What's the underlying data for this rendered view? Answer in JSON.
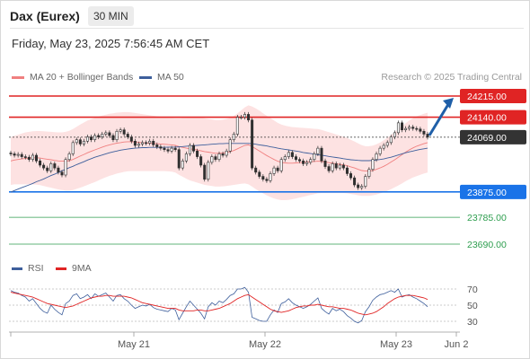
{
  "header": {
    "title": "Dax (Eurex)",
    "timeframe": "30 MIN",
    "datetime": "Friday, May 23, 2025 7:56:45 AM CET"
  },
  "legend": {
    "items": [
      {
        "label": "MA 20 + Bollinger Bands",
        "color": "#f08080"
      },
      {
        "label": "MA 50",
        "color": "#3e5f9c"
      }
    ],
    "credit": "Research © 2025 Trading Central"
  },
  "price_levels": [
    {
      "label": "24215.00",
      "value": 24215,
      "color": "#e02424",
      "kind": "resistance"
    },
    {
      "label": "24140.00",
      "value": 24140,
      "color": "#e02424",
      "kind": "resistance"
    },
    {
      "label": "24069.00",
      "value": 24069,
      "color": "#333333",
      "kind": "last"
    },
    {
      "label": "23875.00",
      "value": 23875,
      "color": "#1a73e8",
      "kind": "pivot"
    },
    {
      "label": "23785.00",
      "value": 23785,
      "color": "#2e9e4f",
      "kind": "support"
    },
    {
      "label": "23690.00",
      "value": 23690,
      "color": "#2e9e4f",
      "kind": "support"
    }
  ],
  "rsi_legend": [
    {
      "label": "RSI",
      "color": "#3e5f9c"
    },
    {
      "label": "9MA",
      "color": "#e02424"
    }
  ],
  "rsi_levels": [
    "70",
    "50",
    "30"
  ],
  "x_axis": {
    "labels": [
      "May 21",
      "May 22",
      "May 23",
      "Jun 2"
    ]
  },
  "chart_data": [
    {
      "type": "candlestick",
      "title": "",
      "ylim": [
        23650,
        24260
      ],
      "x_labels": [
        "May 21",
        "May 22",
        "May 23",
        "Jun 2"
      ],
      "close": [
        24010,
        24005,
        24008,
        24000,
        23998,
        23990,
        24005,
        23985,
        23970,
        23960,
        23950,
        23975,
        23960,
        23945,
        23935,
        23990,
        24010,
        24050,
        24060,
        24045,
        24055,
        24070,
        24060,
        24075,
        24070,
        24080,
        24085,
        24075,
        24060,
        24090,
        24095,
        24080,
        24070,
        24055,
        24040,
        24045,
        24050,
        24048,
        24055,
        24042,
        24035,
        24030,
        24025,
        24020,
        24030,
        24025,
        23960,
        23985,
        24010,
        24040,
        24020,
        24000,
        23970,
        23920,
        23980,
        24000,
        23990,
        24010,
        24005,
        24020,
        24060,
        24080,
        24140,
        24140,
        24150,
        24130,
        23960,
        23945,
        23930,
        23920,
        23915,
        23940,
        23960,
        23950,
        23990,
        24000,
        24015,
        24000,
        23990,
        23985,
        23975,
        23980,
        23990,
        24010,
        24030,
        23985,
        23965,
        23950,
        23975,
        23960,
        23970,
        23960,
        23940,
        23925,
        23900,
        23890,
        23895,
        23930,
        23955,
        23990,
        24010,
        24030,
        24040,
        24050,
        24070,
        24085,
        24120,
        24095,
        24100,
        24105,
        24100,
        24098,
        24090,
        24080,
        24069
      ],
      "ma50": [
        23875,
        23880,
        23885,
        23890,
        23895,
        23900,
        23905,
        23911,
        23916,
        23921,
        23927,
        23933,
        23938,
        23944,
        23950,
        23955,
        23961,
        23966,
        23972,
        23977,
        23982,
        23988,
        23993,
        23998,
        24002,
        24006,
        24010,
        24014,
        24017,
        24020,
        24023,
        24025,
        24027,
        24029,
        24030,
        24031,
        24032,
        24032,
        24033,
        24033,
        24033,
        24033,
        24033,
        24034,
        24034,
        24034,
        24035,
        24036,
        24037,
        24038,
        24039,
        24040,
        24041,
        24042,
        24043,
        24044,
        24045,
        24046,
        24046,
        24047,
        24047,
        24047,
        24047,
        24047,
        24047,
        24047,
        24046,
        24044,
        24042,
        24040,
        24038,
        24035,
        24033,
        24030,
        24028,
        24026,
        24024,
        24022,
        24020,
        24018,
        24015,
        24013,
        24011,
        24009,
        24007,
        24005,
        24003,
        24001,
        23999,
        23997,
        23995,
        23993,
        23991,
        23989,
        23988,
        23987,
        23986,
        23986,
        23986,
        23987,
        23988,
        23990,
        23992,
        23995,
        23998,
        24002,
        24006,
        24010,
        24014,
        24017,
        24020,
        24023,
        24026,
        24028,
        24030
      ],
      "ma20": [
        23985,
        23988,
        23990,
        23992,
        23994,
        23995,
        23996,
        23996,
        23995,
        23993,
        23991,
        23989,
        23987,
        23985,
        23984,
        23984,
        23986,
        23990,
        23996,
        24002,
        24008,
        24014,
        24019,
        24024,
        24029,
        24034,
        24038,
        24042,
        24045,
        24048,
        24050,
        24052,
        24053,
        24053,
        24052,
        24051,
        24050,
        24049,
        24048,
        24047,
        24046,
        24045,
        24044,
        24043,
        24042,
        24040,
        24036,
        24033,
        24030,
        24028,
        24026,
        24024,
        24021,
        24018,
        24016,
        24014,
        24012,
        24012,
        24013,
        24015,
        24018,
        24022,
        24028,
        24034,
        24040,
        24042,
        24036,
        24028,
        24020,
        24012,
        24004,
        23997,
        23990,
        23984,
        23980,
        23978,
        23977,
        23977,
        23978,
        23979,
        23980,
        23981,
        23982,
        23983,
        23984,
        23983,
        23981,
        23979,
        23977,
        23975,
        23973,
        23971,
        23968,
        23964,
        23960,
        23955,
        23951,
        23949,
        23949,
        23951,
        23955,
        23960,
        23966,
        23973,
        23981,
        23989,
        23998,
        24007,
        24016,
        24024,
        24031,
        24037,
        24042,
        24046,
        24050
      ],
      "bb_width": [
        85,
        86,
        88,
        90,
        92,
        93,
        94,
        95,
        96,
        97,
        98,
        99,
        100,
        101,
        102,
        104,
        106,
        108,
        110,
        112,
        113,
        114,
        114,
        114,
        113,
        112,
        111,
        110,
        109,
        108,
        107,
        106,
        105,
        104,
        103,
        102,
        101,
        100,
        99,
        98,
        97,
        96,
        95,
        95,
        95,
        96,
        100,
        104,
        108,
        112,
        114,
        116,
        117,
        118,
        118,
        118,
        118,
        118,
        118,
        119,
        120,
        122,
        126,
        130,
        135,
        140,
        142,
        143,
        143,
        142,
        141,
        140,
        138,
        136,
        134,
        132,
        130,
        128,
        126,
        124,
        122,
        120,
        118,
        116,
        114,
        112,
        110,
        108,
        106,
        104,
        102,
        100,
        98,
        96,
        94,
        92,
        90,
        88,
        88,
        88,
        89,
        90,
        92,
        94,
        96,
        98,
        100,
        102,
        103,
        104,
        105,
        106,
        106,
        106,
        106
      ],
      "levels": [
        24215,
        24140,
        24069,
        23875,
        23785,
        23690
      ],
      "forecast_target": 24215
    },
    {
      "type": "line",
      "title": "",
      "ylim": [
        20,
        80
      ],
      "levels": [
        70,
        50,
        30
      ],
      "series": [
        {
          "name": "RSI",
          "values": [
            68,
            66,
            65,
            62,
            60,
            55,
            58,
            52,
            46,
            42,
            40,
            50,
            45,
            41,
            38,
            52,
            55,
            62,
            64,
            58,
            60,
            63,
            58,
            64,
            61,
            63,
            65,
            60,
            55,
            62,
            63,
            58,
            55,
            50,
            46,
            48,
            50,
            49,
            51,
            47,
            45,
            44,
            43,
            42,
            46,
            44,
            32,
            40,
            48,
            55,
            50,
            45,
            40,
            33,
            48,
            53,
            50,
            55,
            53,
            57,
            62,
            64,
            70,
            70,
            72,
            66,
            35,
            33,
            31,
            30,
            30,
            38,
            44,
            41,
            52,
            54,
            58,
            53,
            50,
            48,
            46,
            48,
            51,
            55,
            59,
            46,
            42,
            39,
            46,
            43,
            45,
            42,
            37,
            34,
            30,
            28,
            31,
            42,
            48,
            56,
            60,
            63,
            64,
            66,
            68,
            66,
            70,
            60,
            62,
            63,
            60,
            58,
            55,
            52,
            48
          ]
        },
        {
          "name": "9MA",
          "values": [
            66,
            65,
            64,
            63,
            62,
            61,
            60,
            58,
            56,
            54,
            52,
            51,
            50,
            49,
            48,
            47,
            48,
            49,
            51,
            53,
            55,
            57,
            59,
            60,
            61,
            61,
            62,
            62,
            61,
            61,
            61,
            61,
            60,
            59,
            57,
            55,
            53,
            52,
            51,
            50,
            49,
            48,
            47,
            46,
            46,
            46,
            44,
            43,
            43,
            43,
            43,
            44,
            44,
            43,
            43,
            44,
            45,
            46,
            48,
            50,
            52,
            55,
            58,
            60,
            62,
            63,
            60,
            57,
            54,
            51,
            48,
            45,
            43,
            42,
            41,
            42,
            43,
            45,
            47,
            48,
            49,
            49,
            50,
            50,
            51,
            50,
            49,
            48,
            48,
            47,
            46,
            46,
            45,
            44,
            42,
            40,
            39,
            38,
            39,
            40,
            42,
            45,
            48,
            52,
            55,
            58,
            60,
            61,
            62,
            62,
            62,
            61,
            60,
            59,
            57
          ]
        }
      ]
    }
  ]
}
